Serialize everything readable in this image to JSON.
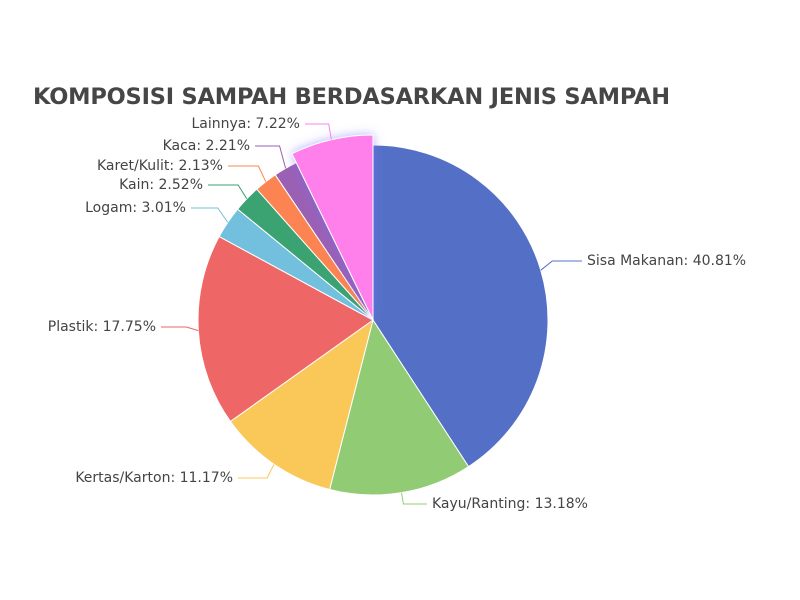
{
  "chart_data": {
    "type": "pie",
    "title": "KOMPOSISI SAMPAH BERDASARKAN JENIS SAMPAH",
    "slices": [
      {
        "name": "Sisa Makanan",
        "value": 40.81,
        "label": "Sisa Makanan: 40.81%",
        "color": "#5470c6"
      },
      {
        "name": "Kayu/Ranting",
        "value": 13.18,
        "label": "Kayu/Ranting: 13.18%",
        "color": "#91cc75"
      },
      {
        "name": "Kertas/Karton",
        "value": 11.17,
        "label": "Kertas/Karton: 11.17%",
        "color": "#fac858"
      },
      {
        "name": "Plastik",
        "value": 17.75,
        "label": "Plastik: 17.75%",
        "color": "#ee6666"
      },
      {
        "name": "Logam",
        "value": 3.01,
        "label": "Logam: 3.01%",
        "color": "#73c0de"
      },
      {
        "name": "Kain",
        "value": 2.52,
        "label": "Kain: 2.52%",
        "color": "#3ba272"
      },
      {
        "name": "Karet/Kulit",
        "value": 2.13,
        "label": "Karet/Kulit: 2.13%",
        "color": "#fc8452"
      },
      {
        "name": "Kaca",
        "value": 2.21,
        "label": "Kaca: 2.21%",
        "color": "#9a60b4"
      },
      {
        "name": "Lainnya",
        "value": 7.22,
        "label": "Lainnya: 7.22%",
        "color": "#ff80ea",
        "highlighted": true
      }
    ]
  }
}
